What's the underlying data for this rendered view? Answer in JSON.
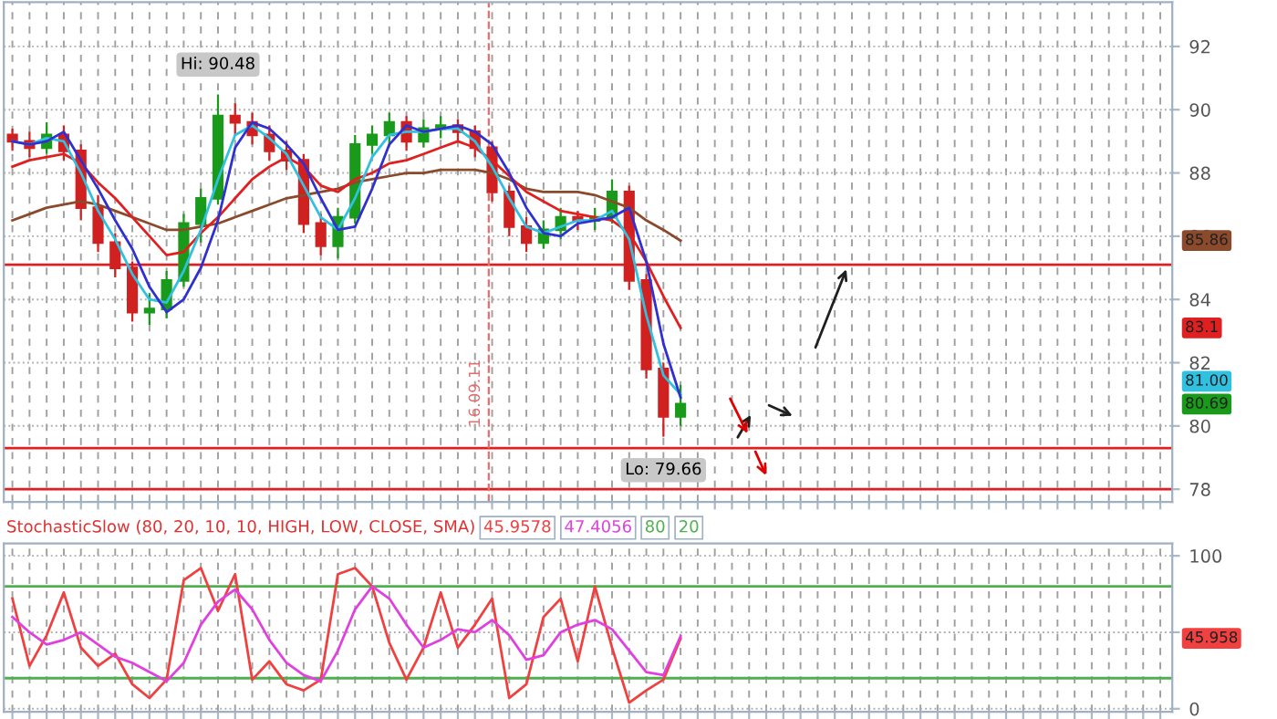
{
  "chart_data": [
    {
      "type": "candlestick",
      "tick_labels": "y",
      "grid": true,
      "legend": false,
      "categories": [
        null,
        null,
        null,
        null,
        null,
        null,
        null,
        null,
        null,
        null,
        null,
        null,
        null,
        null,
        null,
        null,
        null,
        null,
        null,
        null,
        null,
        null,
        null,
        null,
        null,
        null,
        null,
        null,
        null,
        null,
        null,
        null,
        null,
        null,
        null,
        null,
        null,
        null,
        null,
        null,
        null,
        null,
        null,
        null,
        null,
        null,
        null,
        null,
        null,
        null,
        null,
        null,
        null,
        null,
        null,
        null,
        null,
        null,
        null,
        null,
        null,
        null,
        null,
        null,
        null,
        null,
        null,
        null
      ],
      "ohlc": [
        [
          89.2,
          89.4,
          88.7,
          89.0
        ],
        [
          89.0,
          89.3,
          88.5,
          88.8
        ],
        [
          88.8,
          89.6,
          88.6,
          89.2
        ],
        [
          89.2,
          89.5,
          88.4,
          88.7
        ],
        [
          88.7,
          88.9,
          86.5,
          86.9
        ],
        [
          86.9,
          87.3,
          85.5,
          85.8
        ],
        [
          85.8,
          86.1,
          84.7,
          85.0
        ],
        [
          85.0,
          85.2,
          83.3,
          83.6
        ],
        [
          83.6,
          84.2,
          83.2,
          83.7
        ],
        [
          83.7,
          84.9,
          83.4,
          84.6
        ],
        [
          84.6,
          86.7,
          84.4,
          86.4
        ],
        [
          86.4,
          87.5,
          85.8,
          87.2
        ],
        [
          87.2,
          90.48,
          87.0,
          89.8
        ],
        [
          89.8,
          90.2,
          89.2,
          89.6
        ],
        [
          89.6,
          89.9,
          88.9,
          89.2
        ],
        [
          89.2,
          89.5,
          88.4,
          88.7
        ],
        [
          88.7,
          89.0,
          88.1,
          88.4
        ],
        [
          88.4,
          88.6,
          86.1,
          86.4
        ],
        [
          86.4,
          86.7,
          85.4,
          85.7
        ],
        [
          85.7,
          86.9,
          85.3,
          86.6
        ],
        [
          86.6,
          89.2,
          86.4,
          88.9
        ],
        [
          88.9,
          89.5,
          88.6,
          89.2
        ],
        [
          89.2,
          89.9,
          88.9,
          89.6
        ],
        [
          89.6,
          89.8,
          88.7,
          89.0
        ],
        [
          89.0,
          89.7,
          88.8,
          89.4
        ],
        [
          89.4,
          89.8,
          89.1,
          89.5
        ],
        [
          89.5,
          89.7,
          89.0,
          89.3
        ],
        [
          89.3,
          89.5,
          88.5,
          88.8
        ],
        [
          88.8,
          89.0,
          87.1,
          87.4
        ],
        [
          87.4,
          87.6,
          86.0,
          86.3
        ],
        [
          86.3,
          86.6,
          85.5,
          85.8
        ],
        [
          85.8,
          86.5,
          85.6,
          86.2
        ],
        [
          86.2,
          86.9,
          85.9,
          86.6
        ],
        [
          86.6,
          86.8,
          86.2,
          86.5
        ],
        [
          86.5,
          86.9,
          86.2,
          86.6
        ],
        [
          86.6,
          87.8,
          86.4,
          87.4
        ],
        [
          87.4,
          87.6,
          84.3,
          84.6
        ],
        [
          84.6,
          84.8,
          81.5,
          81.8
        ],
        [
          81.8,
          82.0,
          79.66,
          80.3
        ],
        [
          80.3,
          81.3,
          80.0,
          80.69
        ],
        null,
        null,
        null,
        null,
        null,
        null,
        null,
        null,
        null,
        null,
        null,
        null,
        null,
        null,
        null,
        null,
        null,
        null,
        null,
        null,
        null,
        null,
        null,
        null,
        null,
        null,
        null,
        null
      ],
      "series": [
        {
          "type": "line",
          "color": "#8b4a2b",
          "values": [
            86.5,
            86.7,
            86.9,
            87.0,
            87.1,
            87.0,
            86.8,
            86.6,
            86.4,
            86.2,
            86.2,
            86.3,
            86.4,
            86.6,
            86.8,
            87.0,
            87.2,
            87.3,
            87.4,
            87.5,
            87.7,
            87.8,
            87.9,
            88.0,
            88.0,
            88.1,
            88.1,
            88.1,
            88.0,
            87.8,
            87.5,
            87.4,
            87.4,
            87.4,
            87.3,
            87.1,
            86.9,
            86.5,
            86.2,
            85.86,
            null,
            null,
            null,
            null,
            null,
            null,
            null,
            null,
            null,
            null,
            null,
            null,
            null,
            null,
            null,
            null,
            null,
            null,
            null,
            null,
            null,
            null,
            null,
            null,
            null,
            null,
            null,
            null
          ]
        },
        {
          "type": "line",
          "color": "#e02020",
          "values": [
            88.2,
            88.4,
            88.5,
            88.6,
            88.3,
            87.7,
            87.2,
            86.6,
            86.0,
            85.4,
            85.5,
            86.1,
            86.6,
            87.2,
            87.8,
            88.2,
            88.5,
            88.2,
            87.6,
            87.4,
            87.8,
            88.0,
            88.3,
            88.4,
            88.6,
            88.8,
            89.0,
            88.8,
            88.4,
            87.9,
            87.4,
            87.1,
            86.8,
            86.7,
            86.6,
            86.5,
            86.1,
            85.2,
            84.1,
            83.1,
            null,
            null,
            null,
            null,
            null,
            null,
            null,
            null,
            null,
            null,
            null,
            null,
            null,
            null,
            null,
            null,
            null,
            null,
            null,
            null,
            null,
            null,
            null,
            null,
            null,
            null,
            null,
            null
          ]
        },
        {
          "type": "line",
          "color": "#30c0e0",
          "values": [
            89.0,
            88.9,
            89.1,
            89.0,
            88.0,
            86.8,
            85.9,
            84.8,
            84.0,
            83.9,
            84.9,
            86.2,
            87.8,
            89.2,
            89.5,
            89.1,
            88.6,
            87.6,
            86.6,
            86.2,
            87.2,
            88.5,
            89.2,
            89.3,
            89.3,
            89.4,
            89.4,
            89.0,
            88.2,
            87.2,
            86.3,
            86.1,
            86.3,
            86.5,
            86.5,
            86.8,
            85.9,
            83.5,
            81.6,
            81.0,
            null,
            null,
            null,
            null,
            null,
            null,
            null,
            null,
            null,
            null,
            null,
            null,
            null,
            null,
            null,
            null,
            null,
            null,
            null,
            null,
            null,
            null,
            null,
            null,
            null,
            null,
            null,
            null
          ]
        },
        {
          "type": "line",
          "color": "#3030d0",
          "values": [
            89.0,
            88.9,
            89.0,
            89.3,
            88.4,
            87.5,
            86.5,
            85.6,
            84.4,
            83.6,
            84.0,
            85.0,
            86.5,
            88.8,
            89.6,
            89.4,
            88.9,
            88.3,
            87.2,
            86.2,
            86.3,
            87.5,
            88.9,
            89.5,
            89.3,
            89.4,
            89.5,
            89.3,
            88.9,
            88.0,
            86.9,
            86.1,
            86.0,
            86.4,
            86.5,
            86.6,
            86.9,
            85.2,
            82.6,
            80.9,
            null,
            null,
            null,
            null,
            null,
            null,
            null,
            null,
            null,
            null,
            null,
            null,
            null,
            null,
            null,
            null,
            null,
            null,
            null,
            null,
            null,
            null,
            null,
            null,
            null,
            null,
            null,
            null
          ]
        }
      ],
      "ylim": [
        77.6,
        93.4
      ],
      "yticks": [
        78,
        80,
        82,
        84,
        86,
        88,
        90,
        92
      ],
      "ref_lines": [
        {
          "axis": "y",
          "value": 85.1,
          "color": "#e02020"
        },
        {
          "axis": "y",
          "value": 79.3,
          "color": "#e02020"
        },
        {
          "axis": "y",
          "value": 78.0,
          "color": "#e02020"
        }
      ],
      "annotations": [
        {
          "text": "Hi: 90.48",
          "y": 90.48
        },
        {
          "text": "Lo: 79.66",
          "y": 79.66
        },
        "16.09.11",
        "85.86",
        "83.1",
        "81.00",
        "80.69"
      ]
    },
    {
      "type": "line",
      "tick_labels": "y",
      "grid": true,
      "legend": false,
      "marker": "none",
      "title": "StochasticSlow (80, 20, 10, 10, HIGH, LOW, CLOSE, SMA)",
      "categories": [
        null,
        null,
        null,
        null,
        null,
        null,
        null,
        null,
        null,
        null,
        null,
        null,
        null,
        null,
        null,
        null,
        null,
        null,
        null,
        null,
        null,
        null,
        null,
        null,
        null,
        null,
        null,
        null,
        null,
        null,
        null,
        null,
        null,
        null,
        null,
        null,
        null,
        null,
        null,
        null,
        null,
        null,
        null,
        null,
        null,
        null,
        null,
        null,
        null,
        null,
        null,
        null,
        null,
        null,
        null,
        null,
        null,
        null,
        null,
        null,
        null,
        null,
        null,
        null,
        null,
        null,
        null,
        null
      ],
      "series": [
        {
          "color": "#f04040",
          "values": [
            72,
            28,
            48,
            76,
            40,
            28,
            36,
            16,
            7,
            19,
            84,
            92,
            64,
            88,
            19,
            31,
            16,
            12,
            19,
            88,
            92,
            80,
            43,
            19,
            40,
            76,
            40,
            55,
            72,
            7,
            16,
            60,
            72,
            31,
            80,
            40,
            4,
            12,
            19,
            46.0,
            null,
            null,
            null,
            null,
            null,
            null,
            null,
            null,
            null,
            null,
            null,
            null,
            null,
            null,
            null,
            null,
            null,
            null,
            null,
            null,
            null,
            null,
            null,
            null,
            null,
            null,
            null,
            null
          ]
        },
        {
          "color": "#e040e0",
          "values": [
            60,
            50,
            42,
            45,
            50,
            42,
            34,
            30,
            24,
            18,
            30,
            55,
            70,
            78,
            65,
            45,
            30,
            22,
            18,
            38,
            65,
            80,
            72,
            55,
            40,
            45,
            52,
            50,
            58,
            48,
            32,
            35,
            50,
            55,
            58,
            52,
            38,
            24,
            22,
            47.4,
            null,
            null,
            null,
            null,
            null,
            null,
            null,
            null,
            null,
            null,
            null,
            null,
            null,
            null,
            null,
            null,
            null,
            null,
            null,
            null,
            null,
            null,
            null,
            null,
            null,
            null,
            null,
            null
          ]
        }
      ],
      "ylim": [
        -2,
        108
      ],
      "yticks": [
        0,
        {
          "value": 50,
          "label": null
        },
        100
      ],
      "ref_lines": [
        {
          "axis": "y",
          "value": 80,
          "color": "#50b050"
        },
        {
          "axis": "y",
          "value": 20,
          "color": "#50b050"
        }
      ],
      "annotations": [
        "45.9578",
        "47.4056",
        "80",
        "20",
        "45.958"
      ]
    }
  ]
}
